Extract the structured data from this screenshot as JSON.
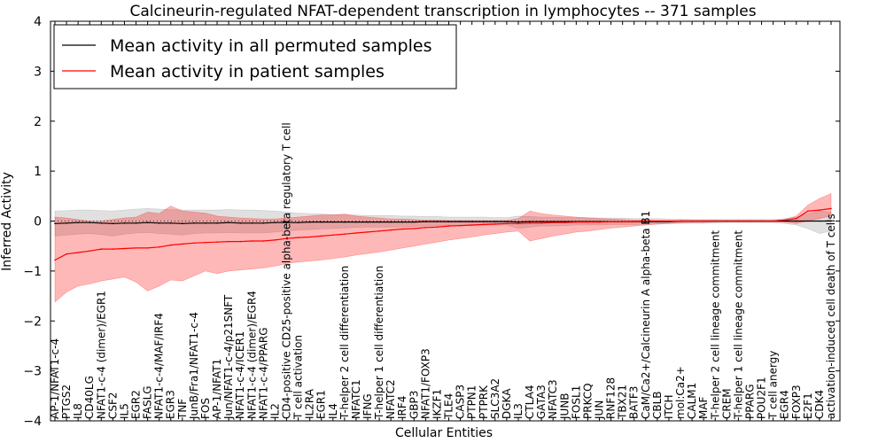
{
  "chart_data": {
    "type": "line",
    "title": "Calcineurin-regulated NFAT-dependent transcription in lymphocytes -- 371 samples",
    "xlabel": "Cellular Entities",
    "ylabel": "Inferred Activity",
    "ylim": [
      -4,
      4
    ],
    "yticks": [
      "4",
      "3",
      "2",
      "1",
      "0",
      "−1",
      "−2",
      "−3",
      "−4"
    ],
    "legend_position": "top-left",
    "colors": {
      "patient": "#ff0000",
      "patient_fill": "#ff0000",
      "permuted": "#000000",
      "permuted_fill": "#999999"
    },
    "categories": [
      "AP-1/NFAT1-c-4",
      "PTGS2",
      "IL8",
      "CD40LG",
      "NFAT1-c-4 (dimer)/EGR1",
      "CSF2",
      "IL5",
      "EGR2",
      "FASLG",
      "NFAT1-c-4/MAF/IRF4",
      "EGR3",
      "TNF",
      "JunB/Fra1/NFAT1-c-4",
      "FOS",
      "AP-1/NFAT1",
      "Jun/NFAT1-c-4/p21SNFT",
      "NFAT1-c-4/ICER1",
      "NFAT1-c-4 (dimer)/EGR4",
      "NFAT1-c-4/PPARG",
      "IL2",
      "CD4-positive CD25-positive alpha-beta regulatory T cell",
      "T cell activation",
      "IL2RA",
      "EGR1",
      "IL4",
      "T-helper 2 cell differentiation",
      "NFATC1",
      "IFNG",
      "T-helper 1 cell differentiation",
      "NFATC2",
      "IRF4",
      "GBP3",
      "NFAT1/FOXP3",
      "IKZF1",
      "TLE4",
      "CASP3",
      "PTPN1",
      "PTPRK",
      "SLC3A2",
      "DGKA",
      "IL3",
      "CTLA4",
      "GATA3",
      "NFATC3",
      "JUNB",
      "FOSL1",
      "PRKCQ",
      "JUN",
      "RNF128",
      "TBX21",
      "BATF3",
      "CaM/Ca2+/Calcineurin A alpha-beta B1",
      "CBLB",
      "ITCH",
      "mol:Ca2+",
      "CALM1",
      "MAF",
      "T-helper 2 cell lineage commitment",
      "CREM",
      "T-helper 1 cell lineage commitment",
      "PPARG",
      "POU2F1",
      "T cell anergy",
      "EGR4",
      "FOXP3",
      "E2F1",
      "CDK4",
      "activation-induced cell death of T cells"
    ],
    "series": [
      {
        "name": "Mean activity in all permuted samples",
        "values": [
          -0.05,
          -0.04,
          -0.03,
          -0.03,
          -0.04,
          -0.05,
          -0.04,
          -0.04,
          -0.03,
          -0.04,
          -0.04,
          -0.05,
          -0.04,
          -0.04,
          -0.04,
          -0.03,
          -0.04,
          -0.04,
          -0.04,
          -0.03,
          -0.03,
          -0.03,
          -0.02,
          -0.02,
          -0.02,
          -0.02,
          -0.02,
          -0.02,
          -0.02,
          -0.02,
          -0.02,
          -0.02,
          -0.01,
          -0.01,
          -0.01,
          -0.01,
          -0.01,
          -0.01,
          -0.01,
          -0.01,
          -0.02,
          -0.01,
          -0.01,
          -0.01,
          -0.01,
          -0.01,
          -0.01,
          -0.01,
          -0.01,
          -0.01,
          -0.01,
          -0.01,
          -0.01,
          -0.01,
          0.0,
          0.0,
          0.0,
          0.0,
          0.0,
          0.0,
          0.0,
          0.0,
          0.0,
          0.0,
          0.0,
          0.0,
          0.0,
          0.0
        ],
        "band_low": [
          -0.3,
          -0.28,
          -0.26,
          -0.25,
          -0.27,
          -0.3,
          -0.26,
          -0.24,
          -0.23,
          -0.25,
          -0.26,
          -0.28,
          -0.25,
          -0.24,
          -0.24,
          -0.23,
          -0.24,
          -0.24,
          -0.24,
          -0.22,
          -0.2,
          -0.18,
          -0.17,
          -0.16,
          -0.15,
          -0.14,
          -0.13,
          -0.12,
          -0.12,
          -0.12,
          -0.12,
          -0.11,
          -0.1,
          -0.1,
          -0.09,
          -0.09,
          -0.09,
          -0.08,
          -0.08,
          -0.08,
          -0.15,
          -0.12,
          -0.1,
          -0.1,
          -0.09,
          -0.08,
          -0.08,
          -0.08,
          -0.07,
          -0.07,
          -0.07,
          -0.06,
          -0.06,
          -0.05,
          -0.04,
          -0.04,
          -0.04,
          -0.04,
          -0.03,
          -0.03,
          -0.03,
          -0.03,
          -0.03,
          -0.05,
          -0.08,
          -0.15,
          -0.25,
          -0.2
        ],
        "band_high": [
          0.2,
          0.21,
          0.22,
          0.22,
          0.21,
          0.2,
          0.22,
          0.24,
          0.25,
          0.24,
          0.23,
          0.22,
          0.22,
          0.22,
          0.22,
          0.23,
          0.22,
          0.22,
          0.21,
          0.2,
          0.18,
          0.16,
          0.15,
          0.14,
          0.13,
          0.12,
          0.12,
          0.11,
          0.11,
          0.11,
          0.1,
          0.1,
          0.09,
          0.09,
          0.08,
          0.08,
          0.08,
          0.08,
          0.07,
          0.07,
          0.1,
          0.09,
          0.08,
          0.08,
          0.07,
          0.07,
          0.07,
          0.06,
          0.06,
          0.06,
          0.05,
          0.05,
          0.05,
          0.04,
          0.04,
          0.03,
          0.03,
          0.03,
          0.03,
          0.03,
          0.03,
          0.03,
          0.03,
          0.05,
          0.08,
          0.15,
          0.2,
          0.18
        ]
      },
      {
        "name": "Mean activity in patient samples",
        "values": [
          -0.78,
          -0.66,
          -0.63,
          -0.6,
          -0.56,
          -0.56,
          -0.55,
          -0.54,
          -0.54,
          -0.52,
          -0.48,
          -0.46,
          -0.44,
          -0.43,
          -0.42,
          -0.41,
          -0.41,
          -0.4,
          -0.4,
          -0.38,
          -0.35,
          -0.33,
          -0.32,
          -0.3,
          -0.28,
          -0.26,
          -0.24,
          -0.22,
          -0.2,
          -0.18,
          -0.16,
          -0.15,
          -0.13,
          -0.12,
          -0.1,
          -0.09,
          -0.08,
          -0.07,
          -0.06,
          -0.05,
          -0.05,
          -0.04,
          -0.04,
          -0.03,
          -0.03,
          -0.02,
          -0.02,
          -0.02,
          -0.01,
          -0.01,
          -0.01,
          0.0,
          0.0,
          0.0,
          0.0,
          0.0,
          0.0,
          0.0,
          0.0,
          0.0,
          0.0,
          0.0,
          0.0,
          0.02,
          0.05,
          0.2,
          0.22,
          0.25
        ],
        "band_low": [
          -1.62,
          -1.42,
          -1.3,
          -1.26,
          -1.2,
          -1.16,
          -1.12,
          -1.22,
          -1.4,
          -1.3,
          -1.18,
          -1.2,
          -1.1,
          -1.0,
          -1.05,
          -1.0,
          -0.98,
          -0.96,
          -0.94,
          -0.9,
          -0.85,
          -0.82,
          -0.8,
          -0.78,
          -0.75,
          -0.72,
          -0.68,
          -0.65,
          -0.62,
          -0.58,
          -0.54,
          -0.5,
          -0.46,
          -0.42,
          -0.38,
          -0.35,
          -0.32,
          -0.28,
          -0.25,
          -0.22,
          -0.2,
          -0.4,
          -0.35,
          -0.3,
          -0.26,
          -0.22,
          -0.2,
          -0.17,
          -0.14,
          -0.12,
          -0.1,
          -0.08,
          -0.06,
          -0.05,
          -0.04,
          -0.03,
          -0.03,
          -0.02,
          -0.02,
          -0.02,
          -0.02,
          -0.02,
          -0.02,
          -0.02,
          -0.05,
          0.0,
          0.05,
          0.1
        ],
        "band_high": [
          0.08,
          0.06,
          0.03,
          0.0,
          0.0,
          0.03,
          0.06,
          0.08,
          0.18,
          0.15,
          0.3,
          0.2,
          0.18,
          0.16,
          0.1,
          0.08,
          0.06,
          0.05,
          0.04,
          0.04,
          0.06,
          0.08,
          0.1,
          0.12,
          0.12,
          0.14,
          0.1,
          0.08,
          0.06,
          0.04,
          0.04,
          0.03,
          0.02,
          0.02,
          0.01,
          0.01,
          0.01,
          0.01,
          0.01,
          0.01,
          0.05,
          0.2,
          0.15,
          0.12,
          0.1,
          0.08,
          0.06,
          0.05,
          0.04,
          0.03,
          0.02,
          0.02,
          0.01,
          0.01,
          0.01,
          0.01,
          0.01,
          0.01,
          0.01,
          0.01,
          0.01,
          0.01,
          0.01,
          0.03,
          0.1,
          0.32,
          0.45,
          0.55
        ]
      }
    ]
  }
}
